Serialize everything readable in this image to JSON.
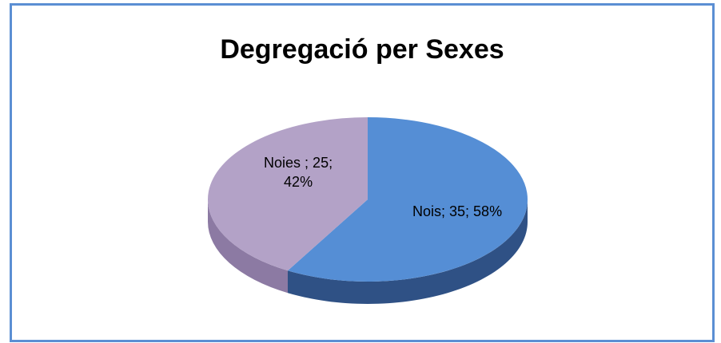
{
  "chart_data": {
    "type": "pie",
    "title": "Degregació per Sexes",
    "categories": [
      "Nois",
      "Noies"
    ],
    "values": [
      35,
      25
    ],
    "value_labels": [
      "Nois; 35; 58%",
      "Noies ; 25; 42%"
    ],
    "colors": [
      "#558ed5",
      "#b3a2c7"
    ],
    "side_colors": [
      "#2f5185",
      "#8c7aa3"
    ]
  }
}
